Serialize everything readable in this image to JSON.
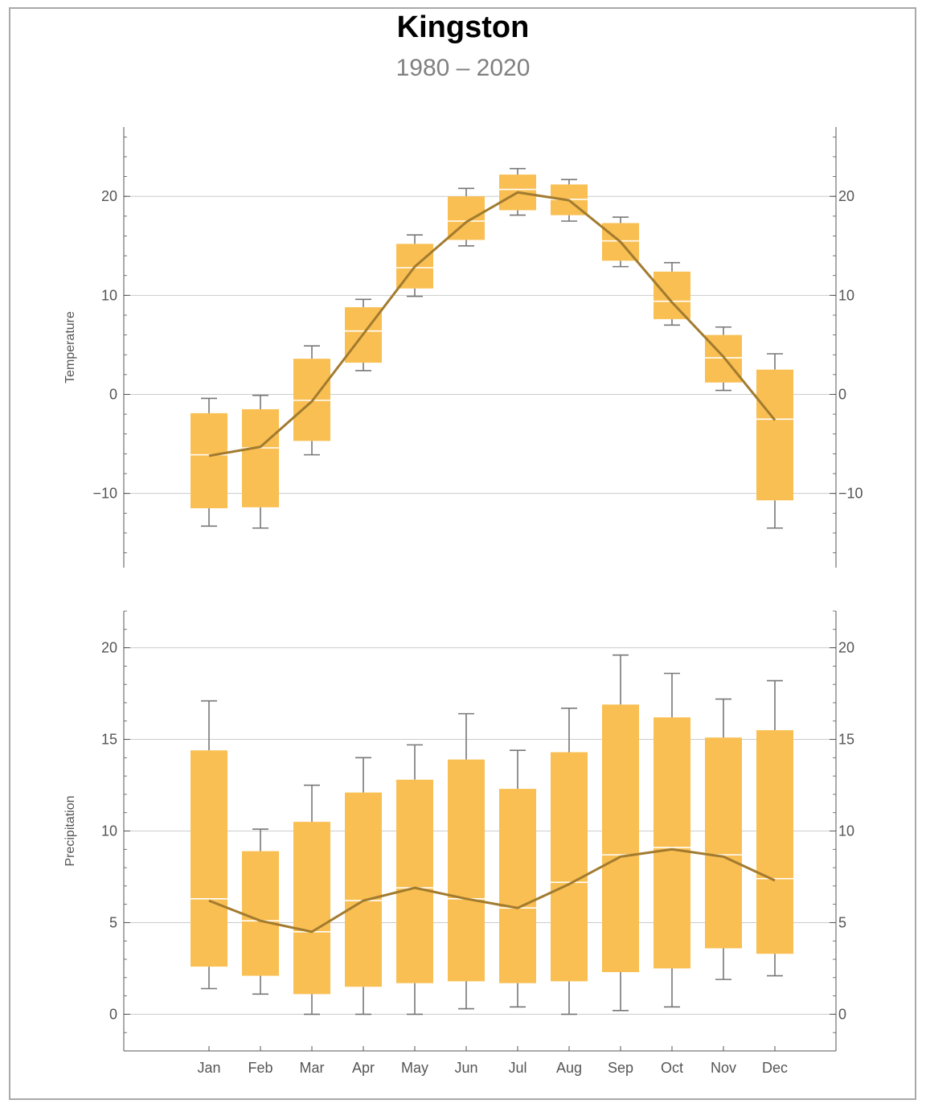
{
  "title": "Kingston",
  "subtitle": "1980 – 2020",
  "colors": {
    "box": "#f9bf52",
    "median": "#ffffff",
    "whisker": "#777777",
    "mean_line": "#a27b2f",
    "grid": "#cccccc",
    "axis": "#555555"
  },
  "chart_data": [
    {
      "type": "box",
      "title": "Kingston",
      "subtitle": "1980 – 2020",
      "ylabel": "Temperature",
      "xlabel": "",
      "ylim": [
        -17.5,
        27
      ],
      "yticks": [
        -10,
        0,
        10,
        20
      ],
      "ytick_labels": [
        "−10",
        "0",
        "10",
        "20"
      ],
      "grid": true,
      "categories": [
        "Jan",
        "Feb",
        "Mar",
        "Apr",
        "May",
        "Jun",
        "Jul",
        "Aug",
        "Sep",
        "Oct",
        "Nov",
        "Dec"
      ],
      "boxes": [
        {
          "whisker_low": -13.3,
          "q1": -11.5,
          "median": -6.1,
          "q3": -1.9,
          "whisker_high": -0.4
        },
        {
          "whisker_low": -13.5,
          "q1": -11.4,
          "median": -5.4,
          "q3": -1.5,
          "whisker_high": -0.1
        },
        {
          "whisker_low": -6.1,
          "q1": -4.7,
          "median": -0.6,
          "q3": 3.6,
          "whisker_high": 4.9
        },
        {
          "whisker_low": 2.4,
          "q1": 3.2,
          "median": 6.4,
          "q3": 8.8,
          "whisker_high": 9.6
        },
        {
          "whisker_low": 9.9,
          "q1": 10.7,
          "median": 12.8,
          "q3": 15.2,
          "whisker_high": 16.1
        },
        {
          "whisker_low": 15.0,
          "q1": 15.6,
          "median": 17.5,
          "q3": 20.0,
          "whisker_high": 20.8
        },
        {
          "whisker_low": 18.1,
          "q1": 18.6,
          "median": 20.7,
          "q3": 22.2,
          "whisker_high": 22.8
        },
        {
          "whisker_low": 17.5,
          "q1": 18.1,
          "median": 19.7,
          "q3": 21.2,
          "whisker_high": 21.7
        },
        {
          "whisker_low": 12.9,
          "q1": 13.5,
          "median": 15.5,
          "q3": 17.3,
          "whisker_high": 17.9
        },
        {
          "whisker_low": 7.0,
          "q1": 7.6,
          "median": 9.4,
          "q3": 12.4,
          "whisker_high": 13.3
        },
        {
          "whisker_low": 0.4,
          "q1": 1.2,
          "median": 3.7,
          "q3": 6.0,
          "whisker_high": 6.8
        },
        {
          "whisker_low": -13.5,
          "q1": -10.7,
          "median": -2.5,
          "q3": 2.5,
          "whisker_high": 4.1
        }
      ],
      "mean_line": [
        -6.2,
        -5.3,
        -0.7,
        6.1,
        12.9,
        17.4,
        20.4,
        19.6,
        15.4,
        9.3,
        3.8,
        -2.6
      ]
    },
    {
      "type": "box",
      "ylabel": "Precipitation",
      "xlabel": "",
      "ylim": [
        -2,
        22
      ],
      "yticks": [
        0,
        5,
        10,
        15,
        20
      ],
      "ytick_labels": [
        "0",
        "5",
        "10",
        "15",
        "20"
      ],
      "grid": true,
      "categories": [
        "Jan",
        "Feb",
        "Mar",
        "Apr",
        "May",
        "Jun",
        "Jul",
        "Aug",
        "Sep",
        "Oct",
        "Nov",
        "Dec"
      ],
      "boxes": [
        {
          "whisker_low": 1.4,
          "q1": 2.6,
          "median": 6.3,
          "q3": 14.4,
          "whisker_high": 17.1
        },
        {
          "whisker_low": 1.1,
          "q1": 2.1,
          "median": 5.1,
          "q3": 8.9,
          "whisker_high": 10.1
        },
        {
          "whisker_low": 0.0,
          "q1": 1.1,
          "median": 4.5,
          "q3": 10.5,
          "whisker_high": 12.5
        },
        {
          "whisker_low": 0.0,
          "q1": 1.5,
          "median": 6.2,
          "q3": 12.1,
          "whisker_high": 14.0
        },
        {
          "whisker_low": 0.0,
          "q1": 1.7,
          "median": 6.9,
          "q3": 12.8,
          "whisker_high": 14.7
        },
        {
          "whisker_low": 0.3,
          "q1": 1.8,
          "median": 6.3,
          "q3": 13.9,
          "whisker_high": 16.4
        },
        {
          "whisker_low": 0.4,
          "q1": 1.7,
          "median": 5.8,
          "q3": 12.3,
          "whisker_high": 14.4
        },
        {
          "whisker_low": 0.0,
          "q1": 1.8,
          "median": 7.2,
          "q3": 14.3,
          "whisker_high": 16.7
        },
        {
          "whisker_low": 0.2,
          "q1": 2.3,
          "median": 8.7,
          "q3": 16.9,
          "whisker_high": 19.6
        },
        {
          "whisker_low": 0.4,
          "q1": 2.5,
          "median": 9.1,
          "q3": 16.2,
          "whisker_high": 18.6
        },
        {
          "whisker_low": 1.9,
          "q1": 3.6,
          "median": 8.7,
          "q3": 15.1,
          "whisker_high": 17.2
        },
        {
          "whisker_low": 2.1,
          "q1": 3.3,
          "median": 7.4,
          "q3": 15.5,
          "whisker_high": 18.2
        }
      ],
      "mean_line": [
        6.2,
        5.1,
        4.5,
        6.2,
        6.9,
        6.3,
        5.8,
        7.1,
        8.6,
        9.0,
        8.6,
        7.3
      ]
    }
  ]
}
